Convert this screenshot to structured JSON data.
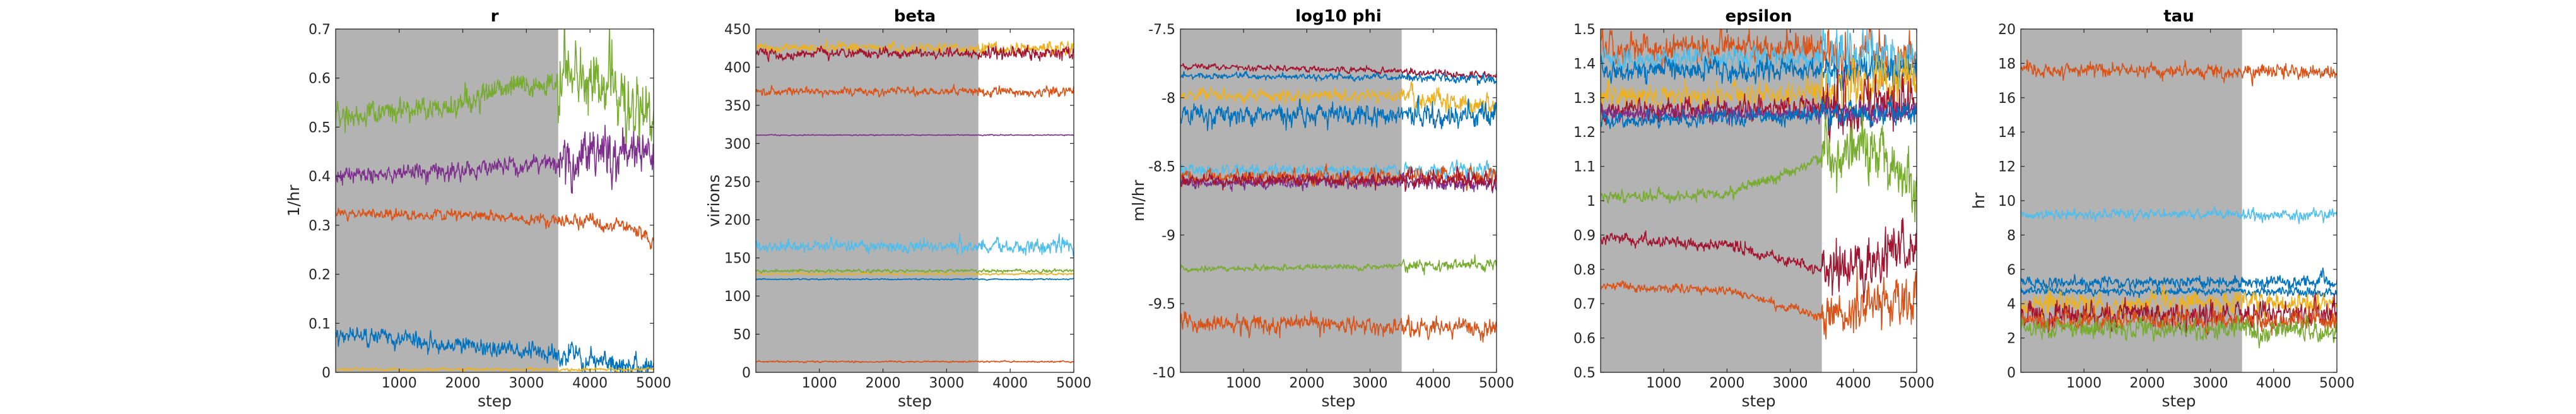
{
  "palette": {
    "blue": "#0072BD",
    "orange": "#D95319",
    "yellow": "#EDB120",
    "purple": "#7E2F8E",
    "green": "#77AC30",
    "cyan": "#4DBEEE",
    "darkred": "#A2142F",
    "burnin_shade": "#B3B3B3",
    "axis": "#262626"
  },
  "chart_data": [
    {
      "type": "line",
      "title": "r",
      "xlabel": "step",
      "ylabel": "1/hr",
      "xlim": [
        1,
        5000
      ],
      "ylim": [
        0,
        0.7
      ],
      "xticks": [
        1000,
        2000,
        3000,
        4000,
        5000
      ],
      "yticks": [
        0,
        0.1,
        0.2,
        0.3,
        0.4,
        0.5,
        0.6,
        0.7
      ],
      "ytick_labels": [
        "0",
        "0.1",
        "0.2",
        "0.3",
        "0.4",
        "0.5",
        "0.6",
        "0.7"
      ],
      "shaded_region": [
        1,
        3500
      ],
      "grid": false,
      "legend": "none",
      "series": [
        {
          "color": "green",
          "start": 0.52,
          "end": 0.5,
          "drift": [
            [
              0,
              0.52
            ],
            [
              1800,
              0.54
            ],
            [
              2600,
              0.58
            ],
            [
              3500,
              0.59
            ],
            [
              4300,
              0.6
            ],
            [
              5000,
              0.52
            ]
          ],
          "noise": 0.012,
          "noise_after": 0.035
        },
        {
          "color": "purple",
          "start": 0.4,
          "end": 0.44,
          "drift": [
            [
              0,
              0.4
            ],
            [
              2000,
              0.41
            ],
            [
              3500,
              0.43
            ],
            [
              4200,
              0.46
            ],
            [
              5000,
              0.44
            ]
          ],
          "noise": 0.008,
          "noise_after": 0.025
        },
        {
          "color": "orange",
          "start": 0.32,
          "end": 0.28,
          "drift": [
            [
              0,
              0.325
            ],
            [
              2000,
              0.32
            ],
            [
              3500,
              0.31
            ],
            [
              4500,
              0.3
            ],
            [
              5000,
              0.27
            ]
          ],
          "noise": 0.005,
          "noise_after": 0.007
        },
        {
          "color": "blue",
          "start": 0.075,
          "end": 0.01,
          "drift": [
            [
              0,
              0.075
            ],
            [
              1500,
              0.06
            ],
            [
              2500,
              0.05
            ],
            [
              3500,
              0.04
            ],
            [
              4200,
              0.02
            ],
            [
              5000,
              0.01
            ]
          ],
          "noise": 0.008,
          "noise_after": 0.012
        },
        {
          "color": "yellow",
          "start": 0.006,
          "end": 0.006,
          "drift": [
            [
              0,
              0.006
            ],
            [
              5000,
              0.006
            ]
          ],
          "noise": 0.0015,
          "noise_after": 0.0015
        }
      ]
    },
    {
      "type": "line",
      "title": "beta",
      "xlabel": "step",
      "ylabel": "virions",
      "xlim": [
        1,
        5000
      ],
      "ylim": [
        0,
        450
      ],
      "xticks": [
        1000,
        2000,
        3000,
        4000,
        5000
      ],
      "yticks": [
        0,
        50,
        100,
        150,
        200,
        250,
        300,
        350,
        400,
        450
      ],
      "ytick_labels": [
        "0",
        "50",
        "100",
        "150",
        "200",
        "250",
        "300",
        "350",
        "400",
        "450"
      ],
      "shaded_region": [
        1,
        3500
      ],
      "grid": false,
      "legend": "none",
      "series": [
        {
          "color": "yellow",
          "start": 425,
          "end": 425,
          "drift": [
            [
              0,
              425
            ],
            [
              5000,
              425
            ]
          ],
          "noise": 3,
          "noise_after": 4
        },
        {
          "color": "darkred",
          "start": 418,
          "end": 418,
          "drift": [
            [
              0,
              418
            ],
            [
              5000,
              418
            ]
          ],
          "noise": 3,
          "noise_after": 4
        },
        {
          "color": "orange",
          "start": 368,
          "end": 368,
          "drift": [
            [
              0,
              368
            ],
            [
              5000,
              368
            ]
          ],
          "noise": 2.5,
          "noise_after": 3
        },
        {
          "color": "purple",
          "start": 311,
          "end": 311,
          "drift": [
            [
              0,
              311
            ],
            [
              5000,
              311
            ]
          ],
          "noise": 0.3,
          "noise_after": 0.3
        },
        {
          "color": "cyan",
          "start": 165,
          "end": 165,
          "drift": [
            [
              0,
              165
            ],
            [
              5000,
              165
            ]
          ],
          "noise": 3.5,
          "noise_after": 4.5
        },
        {
          "color": "green",
          "start": 133,
          "end": 133,
          "drift": [
            [
              0,
              133
            ],
            [
              5000,
              133
            ]
          ],
          "noise": 1,
          "noise_after": 1
        },
        {
          "color": "yellow",
          "start": 129,
          "end": 129,
          "drift": [
            [
              0,
              129
            ],
            [
              5000,
              129
            ]
          ],
          "noise": 0.6,
          "noise_after": 0.6
        },
        {
          "color": "blue",
          "start": 122,
          "end": 122,
          "drift": [
            [
              0,
              122
            ],
            [
              5000,
              122
            ]
          ],
          "noise": 0.4,
          "noise_after": 0.4
        },
        {
          "color": "orange",
          "start": 14,
          "end": 14,
          "drift": [
            [
              0,
              14
            ],
            [
              5000,
              14
            ]
          ],
          "noise": 0.5,
          "noise_after": 0.5
        }
      ]
    },
    {
      "type": "line",
      "title": "log10 phi",
      "xlabel": "step",
      "ylabel": "ml/hr",
      "xlim": [
        1,
        5000
      ],
      "ylim": [
        -10,
        -7.5
      ],
      "xticks": [
        1000,
        2000,
        3000,
        4000,
        5000
      ],
      "yticks": [
        -10,
        -9.5,
        -9,
        -8.5,
        -8,
        -7.5
      ],
      "ytick_labels": [
        "-10",
        "-9.5",
        "-9",
        "-8.5",
        "-8",
        "-7.5"
      ],
      "shaded_region": [
        1,
        3500
      ],
      "grid": false,
      "legend": "none",
      "series": [
        {
          "color": "darkred",
          "start": -7.77,
          "end": -7.85,
          "drift": [
            [
              0,
              -7.77
            ],
            [
              3000,
              -7.8
            ],
            [
              5000,
              -7.85
            ]
          ],
          "noise": 0.01,
          "noise_after": 0.012
        },
        {
          "color": "blue",
          "start": -7.84,
          "end": -7.86,
          "drift": [
            [
              0,
              -7.84
            ],
            [
              5000,
              -7.86
            ]
          ],
          "noise": 0.01,
          "noise_after": 0.015
        },
        {
          "color": "yellow",
          "start": -7.98,
          "end": -8.02,
          "drift": [
            [
              0,
              -7.98
            ],
            [
              3500,
              -7.99
            ],
            [
              5000,
              -8.05
            ]
          ],
          "noise": 0.02,
          "noise_after": 0.04
        },
        {
          "color": "blue",
          "start": -8.12,
          "end": -8.12,
          "drift": [
            [
              0,
              -8.12
            ],
            [
              5000,
              -8.12
            ]
          ],
          "noise": 0.035,
          "noise_after": 0.04
        },
        {
          "color": "cyan",
          "start": -8.53,
          "end": -8.53,
          "drift": [
            [
              0,
              -8.53
            ],
            [
              5000,
              -8.53
            ]
          ],
          "noise": 0.02,
          "noise_after": 0.025
        },
        {
          "color": "orange",
          "start": -8.58,
          "end": -8.58,
          "drift": [
            [
              0,
              -8.58
            ],
            [
              5000,
              -8.58
            ]
          ],
          "noise": 0.025,
          "noise_after": 0.03
        },
        {
          "color": "purple",
          "start": -8.62,
          "end": -8.62,
          "drift": [
            [
              0,
              -8.62
            ],
            [
              5000,
              -8.62
            ]
          ],
          "noise": 0.02,
          "noise_after": 0.025
        },
        {
          "color": "darkred",
          "start": -8.6,
          "end": -8.6,
          "drift": [
            [
              0,
              -8.6
            ],
            [
              5000,
              -8.6
            ]
          ],
          "noise": 0.02,
          "noise_after": 0.025
        },
        {
          "color": "green",
          "start": -9.25,
          "end": -9.22,
          "drift": [
            [
              0,
              -9.25
            ],
            [
              5000,
              -9.22
            ]
          ],
          "noise": 0.01,
          "noise_after": 0.02
        },
        {
          "color": "orange",
          "start": -9.63,
          "end": -9.68,
          "drift": [
            [
              0,
              -9.63
            ],
            [
              5000,
              -9.68
            ]
          ],
          "noise": 0.03,
          "noise_after": 0.035
        }
      ]
    },
    {
      "type": "line",
      "title": "epsilon",
      "xlabel": "step",
      "ylabel": "",
      "xlim": [
        1,
        5000
      ],
      "ylim": [
        0.5,
        1.5
      ],
      "xticks": [
        1000,
        2000,
        3000,
        4000,
        5000
      ],
      "yticks": [
        0.5,
        0.6,
        0.7,
        0.8,
        0.9,
        1,
        1.1,
        1.2,
        1.3,
        1.4,
        1.5
      ],
      "ytick_labels": [
        "0.5",
        "0.6",
        "0.7",
        "0.8",
        "0.9",
        "1",
        "1.1",
        "1.2",
        "1.3",
        "1.4",
        "1.5"
      ],
      "shaded_region": [
        1,
        3500
      ],
      "grid": false,
      "legend": "none",
      "series": [
        {
          "color": "orange",
          "start": 1.45,
          "end": 1.4,
          "drift": [
            [
              0,
              1.45
            ],
            [
              3500,
              1.44
            ],
            [
              5000,
              1.4
            ]
          ],
          "noise": 0.02,
          "noise_after": 0.035
        },
        {
          "color": "cyan",
          "start": 1.41,
          "end": 1.42,
          "drift": [
            [
              0,
              1.41
            ],
            [
              5000,
              1.42
            ]
          ],
          "noise": 0.015,
          "noise_after": 0.035
        },
        {
          "color": "blue",
          "start": 1.38,
          "end": 1.38,
          "drift": [
            [
              0,
              1.38
            ],
            [
              5000,
              1.38
            ]
          ],
          "noise": 0.015,
          "noise_after": 0.02
        },
        {
          "color": "yellow",
          "start": 1.3,
          "end": 1.36,
          "drift": [
            [
              0,
              1.3
            ],
            [
              3500,
              1.31
            ],
            [
              5000,
              1.36
            ]
          ],
          "noise": 0.015,
          "noise_after": 0.035
        },
        {
          "color": "darkred",
          "start": 1.26,
          "end": 1.28,
          "drift": [
            [
              0,
              1.26
            ],
            [
              3500,
              1.27
            ],
            [
              5000,
              1.28
            ]
          ],
          "noise": 0.015,
          "noise_after": 0.035
        },
        {
          "color": "purple",
          "start": 1.25,
          "end": 1.26,
          "drift": [
            [
              0,
              1.25
            ],
            [
              5000,
              1.26
            ]
          ],
          "noise": 0.01,
          "noise_after": 0.015
        },
        {
          "color": "blue",
          "start": 1.23,
          "end": 1.26,
          "drift": [
            [
              0,
              1.23
            ],
            [
              5000,
              1.26
            ]
          ],
          "noise": 0.01,
          "noise_after": 0.015
        },
        {
          "color": "green",
          "start": 1.01,
          "end": 1.05,
          "drift": [
            [
              0,
              1.01
            ],
            [
              2000,
              1.02
            ],
            [
              3000,
              1.08
            ],
            [
              3500,
              1.13
            ],
            [
              4200,
              1.16
            ],
            [
              5000,
              1.05
            ]
          ],
          "noise": 0.008,
          "noise_after": 0.04
        },
        {
          "color": "darkred",
          "start": 0.89,
          "end": 0.86,
          "drift": [
            [
              0,
              0.89
            ],
            [
              2000,
              0.87
            ],
            [
              3500,
              0.8
            ],
            [
              4200,
              0.82
            ],
            [
              5000,
              0.86
            ]
          ],
          "noise": 0.008,
          "noise_after": 0.035
        },
        {
          "color": "orange",
          "start": 0.75,
          "end": 0.72,
          "drift": [
            [
              0,
              0.75
            ],
            [
              2000,
              0.74
            ],
            [
              3500,
              0.66
            ],
            [
              4200,
              0.68
            ],
            [
              5000,
              0.72
            ]
          ],
          "noise": 0.006,
          "noise_after": 0.035
        }
      ]
    },
    {
      "type": "line",
      "title": "tau",
      "xlabel": "step",
      "ylabel": "hr",
      "xlim": [
        1,
        5000
      ],
      "ylim": [
        0,
        20
      ],
      "xticks": [
        1000,
        2000,
        3000,
        4000,
        5000
      ],
      "yticks": [
        0,
        2,
        4,
        6,
        8,
        10,
        12,
        14,
        16,
        18,
        20
      ],
      "ytick_labels": [
        "0",
        "2",
        "4",
        "6",
        "8",
        "10",
        "12",
        "14",
        "16",
        "18",
        "20"
      ],
      "shaded_region": [
        1,
        3500
      ],
      "grid": false,
      "legend": "none",
      "series": [
        {
          "color": "orange",
          "start": 17.6,
          "end": 17.5,
          "drift": [
            [
              0,
              17.6
            ],
            [
              5000,
              17.5
            ]
          ],
          "noise": 0.18,
          "noise_after": 0.2
        },
        {
          "color": "cyan",
          "start": 9.2,
          "end": 9.2,
          "drift": [
            [
              0,
              9.2
            ],
            [
              5000,
              9.2
            ]
          ],
          "noise": 0.12,
          "noise_after": 0.15
        },
        {
          "color": "blue",
          "start": 5.2,
          "end": 5.3,
          "drift": [
            [
              0,
              5.2
            ],
            [
              5000,
              5.3
            ]
          ],
          "noise": 0.15,
          "noise_after": 0.2
        },
        {
          "color": "blue",
          "start": 4.7,
          "end": 4.7,
          "drift": [
            [
              0,
              4.7
            ],
            [
              5000,
              4.7
            ]
          ],
          "noise": 0.1,
          "noise_after": 0.12
        },
        {
          "color": "yellow",
          "start": 4.0,
          "end": 4.0,
          "drift": [
            [
              0,
              4.0
            ],
            [
              5000,
              4.0
            ]
          ],
          "noise": 0.3,
          "noise_after": 0.3
        },
        {
          "color": "darkred",
          "start": 3.4,
          "end": 3.4,
          "drift": [
            [
              0,
              3.4
            ],
            [
              5000,
              3.4
            ]
          ],
          "noise": 0.35,
          "noise_after": 0.35
        },
        {
          "color": "orange",
          "start": 3.0,
          "end": 3.0,
          "drift": [
            [
              0,
              3.0
            ],
            [
              5000,
              3.0
            ]
          ],
          "noise": 0.25,
          "noise_after": 0.3
        },
        {
          "color": "green",
          "start": 2.6,
          "end": 2.4,
          "drift": [
            [
              0,
              2.6
            ],
            [
              5000,
              2.4
            ]
          ],
          "noise": 0.25,
          "noise_after": 0.3
        }
      ]
    }
  ]
}
